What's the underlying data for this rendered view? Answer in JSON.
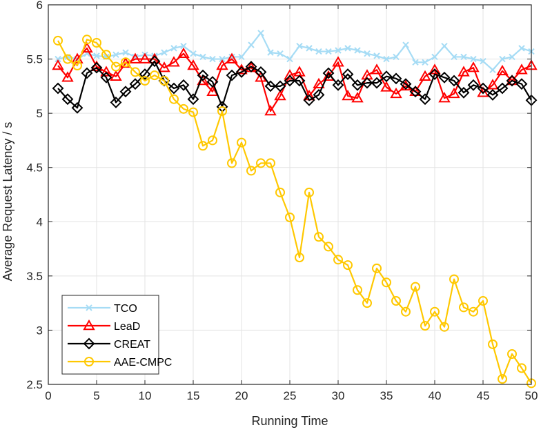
{
  "chart_data": {
    "type": "line",
    "title": "",
    "xlabel": "Running Time",
    "ylabel": "Average Request Latency / s",
    "xlim": [
      0,
      50
    ],
    "ylim": [
      2.5,
      6
    ],
    "xticks": [
      0,
      5,
      10,
      15,
      20,
      25,
      30,
      35,
      40,
      45,
      50
    ],
    "yticks": [
      2.5,
      3,
      3.5,
      4,
      4.5,
      5,
      5.5,
      6
    ],
    "xtick_labels": [
      "0",
      "5",
      "10",
      "15",
      "20",
      "25",
      "30",
      "35",
      "40",
      "45",
      "50"
    ],
    "ytick_labels": [
      "2.5",
      "3",
      "3.5",
      "4",
      "4.5",
      "5",
      "5.5",
      "6"
    ],
    "grid": true,
    "legend_position": "bottom-left",
    "x": [
      1,
      2,
      3,
      4,
      5,
      6,
      7,
      8,
      9,
      10,
      11,
      12,
      13,
      14,
      15,
      16,
      17,
      18,
      19,
      20,
      21,
      22,
      23,
      24,
      25,
      26,
      27,
      28,
      29,
      30,
      31,
      32,
      33,
      34,
      35,
      36,
      37,
      38,
      39,
      40,
      41,
      42,
      43,
      44,
      45,
      46,
      47,
      48,
      49,
      50
    ],
    "series": [
      {
        "name": "TCO",
        "color": "#a6dcf5",
        "marker": "x",
        "values": [
          5.5,
          5.52,
          5.5,
          5.55,
          5.53,
          5.52,
          5.54,
          5.56,
          5.52,
          5.54,
          5.53,
          5.56,
          5.6,
          5.62,
          5.55,
          5.52,
          5.5,
          5.5,
          5.52,
          5.52,
          5.63,
          5.74,
          5.56,
          5.55,
          5.5,
          5.62,
          5.6,
          5.57,
          5.57,
          5.58,
          5.6,
          5.58,
          5.55,
          5.53,
          5.5,
          5.52,
          5.63,
          5.47,
          5.47,
          5.52,
          5.62,
          5.52,
          5.52,
          5.5,
          5.48,
          5.4,
          5.5,
          5.52,
          5.6,
          5.57
        ]
      },
      {
        "name": "LeaD",
        "color": "#ff0000",
        "marker": "triangle",
        "values": [
          5.44,
          5.33,
          5.5,
          5.6,
          5.43,
          5.38,
          5.34,
          5.46,
          5.5,
          5.5,
          5.5,
          5.42,
          5.47,
          5.55,
          5.44,
          5.3,
          5.2,
          5.44,
          5.5,
          5.4,
          5.42,
          5.33,
          5.02,
          5.16,
          5.35,
          5.38,
          5.16,
          5.27,
          5.34,
          5.47,
          5.16,
          5.14,
          5.35,
          5.4,
          5.24,
          5.18,
          5.25,
          5.2,
          5.34,
          5.4,
          5.14,
          5.18,
          5.38,
          5.42,
          5.19,
          5.26,
          5.39,
          5.3,
          5.4,
          5.44
        ]
      },
      {
        "name": "CREAT",
        "color": "#000000",
        "marker": "diamond",
        "values": [
          5.23,
          5.13,
          5.05,
          5.37,
          5.42,
          5.33,
          5.1,
          5.2,
          5.27,
          5.36,
          5.48,
          5.3,
          5.23,
          5.26,
          5.13,
          5.35,
          5.29,
          5.06,
          5.35,
          5.38,
          5.43,
          5.38,
          5.25,
          5.25,
          5.3,
          5.3,
          5.12,
          5.17,
          5.37,
          5.26,
          5.36,
          5.26,
          5.28,
          5.28,
          5.34,
          5.32,
          5.27,
          5.2,
          5.13,
          5.36,
          5.33,
          5.3,
          5.19,
          5.26,
          5.23,
          5.17,
          5.23,
          5.3,
          5.27,
          5.12
        ]
      },
      {
        "name": "AAE-CMPC",
        "color": "#ffc800",
        "marker": "circle",
        "values": [
          5.67,
          5.5,
          5.44,
          5.68,
          5.65,
          5.54,
          5.43,
          5.47,
          5.38,
          5.3,
          5.35,
          5.3,
          5.13,
          5.04,
          5.01,
          4.7,
          4.75,
          5.02,
          4.54,
          4.73,
          4.47,
          4.54,
          4.54,
          4.27,
          4.04,
          3.67,
          4.27,
          3.86,
          3.77,
          3.65,
          3.6,
          3.37,
          3.25,
          3.57,
          3.44,
          3.27,
          3.17,
          3.4,
          3.04,
          3.17,
          3.03,
          3.47,
          3.21,
          3.17,
          3.27,
          2.87,
          2.55,
          2.78,
          2.65,
          2.51
        ]
      }
    ]
  }
}
